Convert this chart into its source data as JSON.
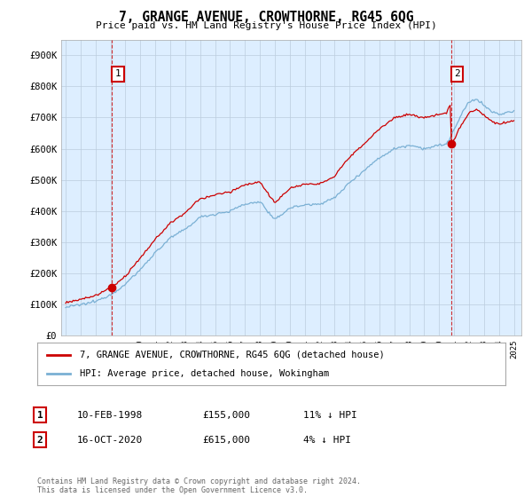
{
  "title": "7, GRANGE AVENUE, CROWTHORNE, RG45 6QG",
  "subtitle": "Price paid vs. HM Land Registry's House Price Index (HPI)",
  "legend_line1": "7, GRANGE AVENUE, CROWTHORNE, RG45 6QG (detached house)",
  "legend_line2": "HPI: Average price, detached house, Wokingham",
  "sale1_label": "1",
  "sale1_date": "10-FEB-1998",
  "sale1_price": "£155,000",
  "sale1_hpi": "11% ↓ HPI",
  "sale2_label": "2",
  "sale2_date": "16-OCT-2020",
  "sale2_price": "£615,000",
  "sale2_hpi": "4% ↓ HPI",
  "footer": "Contains HM Land Registry data © Crown copyright and database right 2024.\nThis data is licensed under the Open Government Licence v3.0.",
  "line_color_red": "#cc0000",
  "line_color_blue": "#7ab0d4",
  "bg_color": "#ffffff",
  "chart_bg_color": "#ddeeff",
  "grid_color": "#bbccdd",
  "ylim": [
    0,
    950000
  ],
  "yticks": [
    0,
    100000,
    200000,
    300000,
    400000,
    500000,
    600000,
    700000,
    800000,
    900000
  ],
  "ytick_labels": [
    "£0",
    "£100K",
    "£200K",
    "£300K",
    "£400K",
    "£500K",
    "£600K",
    "£700K",
    "£800K",
    "£900K"
  ],
  "sale1_year": 1998.1,
  "sale1_value": 155000,
  "sale2_year": 2020.8,
  "sale2_value": 615000,
  "dashed_line_color": "#cc0000",
  "box_color": "#cc0000"
}
